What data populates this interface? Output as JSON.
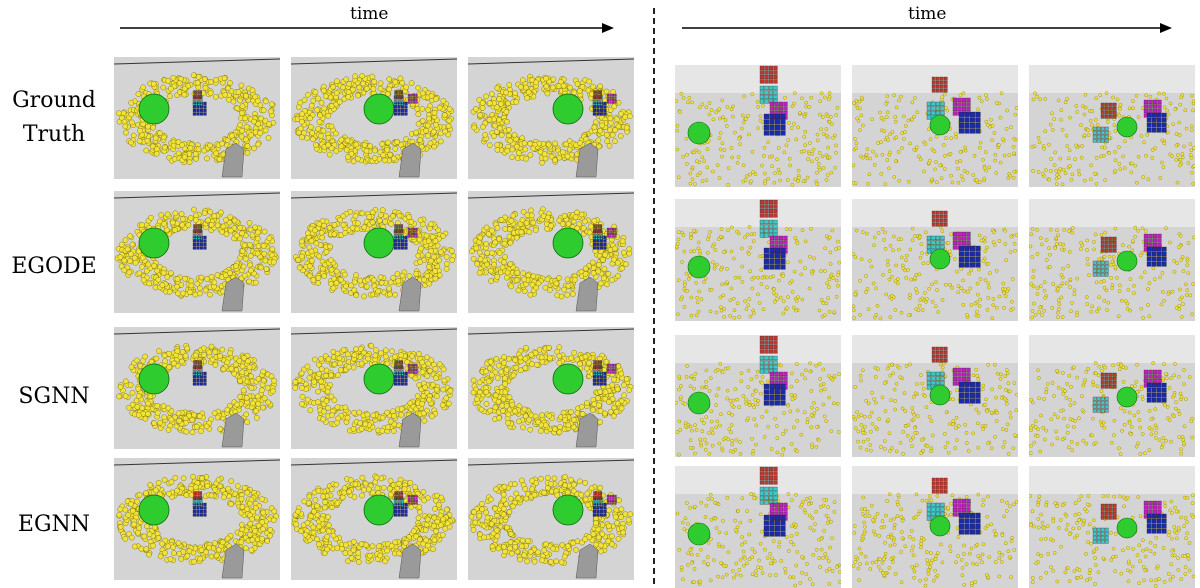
{
  "figure": {
    "left_time_label": "time",
    "right_time_label": "time",
    "rows": [
      {
        "label_lines": [
          "Ground",
          "Truth"
        ]
      },
      {
        "label_lines": [
          "EGODE"
        ]
      },
      {
        "label_lines": [
          "SGNN"
        ]
      },
      {
        "label_lines": [
          "EGNN"
        ]
      }
    ]
  },
  "colors": {
    "particle_yellow": "#f2e33c",
    "sphere_green": "#2ecc2e",
    "cube_red": "#c0392b",
    "cube_cyan": "#3ec9c9",
    "cube_magenta": "#c21fc2",
    "cube_blue": "#1a2aa8",
    "obstacle_gray": "#9a9a9a",
    "floor_gray": "#d4d4d4"
  }
}
